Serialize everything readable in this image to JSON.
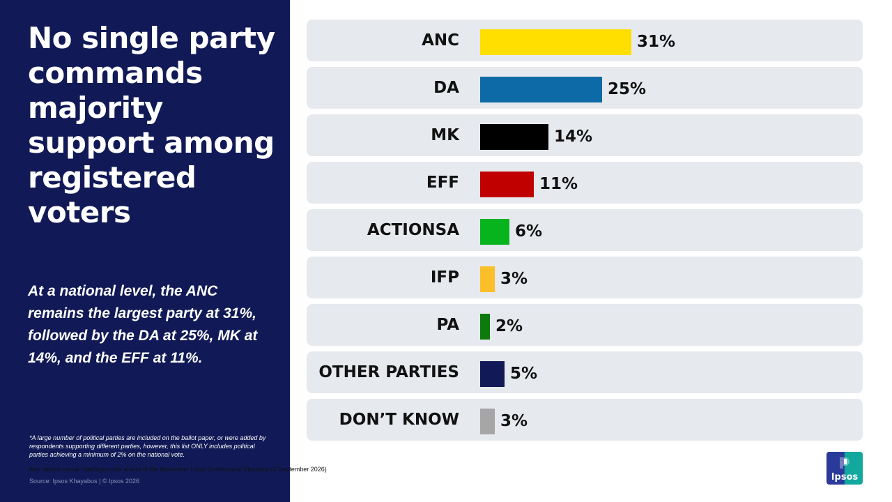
{
  "title": "No single party commands majority support among registered voters",
  "summary": "At a national level, the ANC remains the largest party at 31%, followed by the DA at 25%, MK at 14%, and the EFF at 11%.",
  "footnote": "*A large number of political parties are included on the ballot paper, or were added by respondents supporting different parties, however, this list ONLY includes political parties achieving a minimum of 2% on the national vote.",
  "context_line": "Key metros remain battlegrounds ahead of the November Local Government Elections (4 September 2026)",
  "source_line": "Source: Ipsos Khayabus  |  © Ipsos 2026",
  "logo_text": "Ipsos",
  "chart_data": {
    "type": "bar",
    "orientation": "horizontal",
    "categories": [
      "ANC",
      "DA",
      "MK",
      "EFF",
      "ACTIONSA",
      "IFP",
      "PA",
      "OTHER PARTIES",
      "DON’T KNOW"
    ],
    "values": [
      31,
      25,
      14,
      11,
      6,
      3,
      2,
      5,
      3
    ],
    "value_labels": [
      "31%",
      "25%",
      "14%",
      "11%",
      "6%",
      "3%",
      "2%",
      "5%",
      "3%"
    ],
    "colors": [
      "#ffdf00",
      "#0e6aa6",
      "#000000",
      "#c00000",
      "#07b41e",
      "#fbbf2a",
      "#0c7a0c",
      "#111a56",
      "#a6a6a6"
    ],
    "unit": "%",
    "grid": false,
    "legend": "none"
  }
}
